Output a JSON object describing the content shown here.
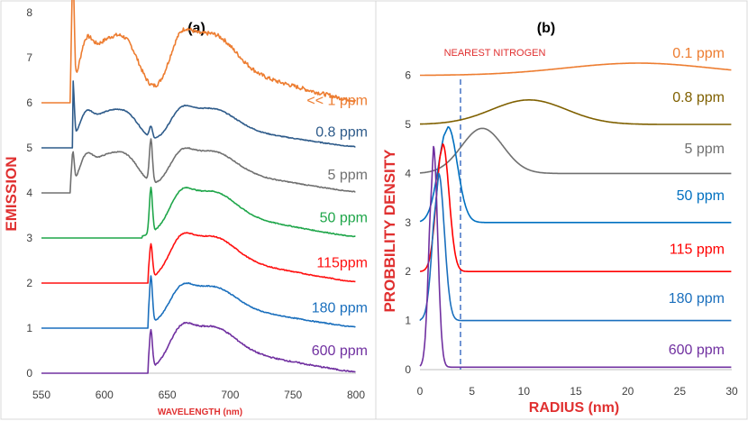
{
  "chart_data": [
    {
      "type": "line",
      "title": "(a)",
      "xlabel": "WAVELENGTH (nm)",
      "ylabel": "EMISSION",
      "xlim": [
        550,
        800
      ],
      "ylim": [
        0,
        8
      ],
      "x_ticks": [
        550,
        600,
        650,
        700,
        750,
        800
      ],
      "y_ticks": [
        0,
        1,
        2,
        3,
        4,
        5,
        6,
        7,
        8
      ],
      "axis_label_color": "#e03030",
      "series": [
        {
          "name": "<< 1 ppm",
          "label": "<< 1 ppm",
          "color": "#ed7d31",
          "offset": 6,
          "start": 573,
          "zpl575": 2.6,
          "zpl637": 0.0,
          "peak": 1.4,
          "noise": 0.09,
          "label_y": 6.05
        },
        {
          "name": "0.8 ppm",
          "label": "0.8 ppm",
          "color": "#2e5b8a",
          "offset": 5,
          "start": 575,
          "zpl575": 1.3,
          "zpl637": 0.25,
          "peak": 0.8,
          "noise": 0.02,
          "label_y": 5.35
        },
        {
          "name": "5 ppm",
          "label": "5 ppm",
          "color": "#707070",
          "offset": 4,
          "start": 573,
          "zpl575": 0.7,
          "zpl637": 0.95,
          "peak": 0.85,
          "noise": 0.02,
          "label_y": 4.4
        },
        {
          "name": "50 ppm",
          "label": "50 ppm",
          "color": "#1fa64a",
          "offset": 3,
          "start": 630,
          "zpl575": 0.1,
          "zpl637": 1.0,
          "peak": 0.95,
          "noise": 0.02,
          "label_y": 3.45
        },
        {
          "name": "115ppm",
          "label": "115ppm",
          "color": "#ff1010",
          "offset": 2,
          "start": 635,
          "zpl575": 0.0,
          "zpl637": 0.75,
          "peak": 0.95,
          "noise": 0.02,
          "label_y": 2.45
        },
        {
          "name": "180 ppm",
          "label": "180 ppm",
          "color": "#1a6fbd",
          "offset": 1,
          "start": 635,
          "zpl575": 0.0,
          "zpl637": 1.05,
          "peak": 0.85,
          "noise": 0.02,
          "label_y": 1.45
        },
        {
          "name": "600 ppm",
          "label": "600 ppm",
          "color": "#7030a0",
          "offset": 0,
          "start": 635,
          "zpl575": 0.0,
          "zpl637": 0.85,
          "peak": 0.95,
          "noise": 0.03,
          "label_y": 0.5
        }
      ]
    },
    {
      "type": "line",
      "title": "(b)",
      "xlabel": "RADIUS (nm)",
      "ylabel": "PROBBILITY DENSITY",
      "xlim": [
        0,
        30
      ],
      "ylim": [
        0,
        6.6
      ],
      "x_ticks": [
        0,
        5,
        10,
        15,
        20,
        25,
        30
      ],
      "y_ticks": [
        0,
        1,
        2,
        3,
        4,
        5,
        6
      ],
      "axis_label_color": "#e03030",
      "annotation": {
        "text": "NEAREST NITROGEN",
        "x": 3.9,
        "color": "#e03030",
        "line_color": "#4472c4"
      },
      "series": [
        {
          "name": "0.1 ppm",
          "label": "0.1 ppm",
          "color": "#ed7d31",
          "offset": 6,
          "amp": 0.25,
          "center": 21,
          "width": 7,
          "sharp": false,
          "label_y": 6.45
        },
        {
          "name": "0.8 ppm",
          "label": "0.8 ppm",
          "color": "#7f6000",
          "offset": 5,
          "amp": 0.5,
          "center": 10.5,
          "width": 3.6,
          "sharp": false,
          "label_y": 5.55
        },
        {
          "name": "5 ppm",
          "label": "5 ppm",
          "color": "#707070",
          "offset": 4,
          "amp": 0.92,
          "center": 6,
          "width": 2.0,
          "sharp": false,
          "label_y": 4.5
        },
        {
          "name": "50 ppm",
          "label": "50 ppm",
          "color": "#0070c0",
          "offset": 3,
          "amp": 1.95,
          "center": 2.7,
          "width": 0.9,
          "sharp": false,
          "start": 0,
          "start_val": 4.0,
          "label_y": 3.55
        },
        {
          "name": "115 ppm",
          "label": "115 ppm",
          "color": "#ff0000",
          "offset": 2,
          "amp": 2.6,
          "center": 2.2,
          "width": 0.6,
          "sharp": false,
          "start": 0,
          "start_val": 3.0,
          "label_y": 2.45
        },
        {
          "name": "180 ppm",
          "label": "180 ppm",
          "color": "#1a6fbd",
          "offset": 1,
          "amp": 3.0,
          "center": 1.8,
          "width": 0.55,
          "sharp": false,
          "start": 0,
          "start_val": 1.0,
          "label_y": 1.45
        },
        {
          "name": "600 ppm",
          "label": "600 ppm",
          "color": "#7030a0",
          "offset": 0.05,
          "amp": 4.5,
          "center": 1.3,
          "width": 0.4,
          "sharp": true,
          "start": 0,
          "start_val": 0.1,
          "label_y": 0.4
        }
      ]
    }
  ]
}
